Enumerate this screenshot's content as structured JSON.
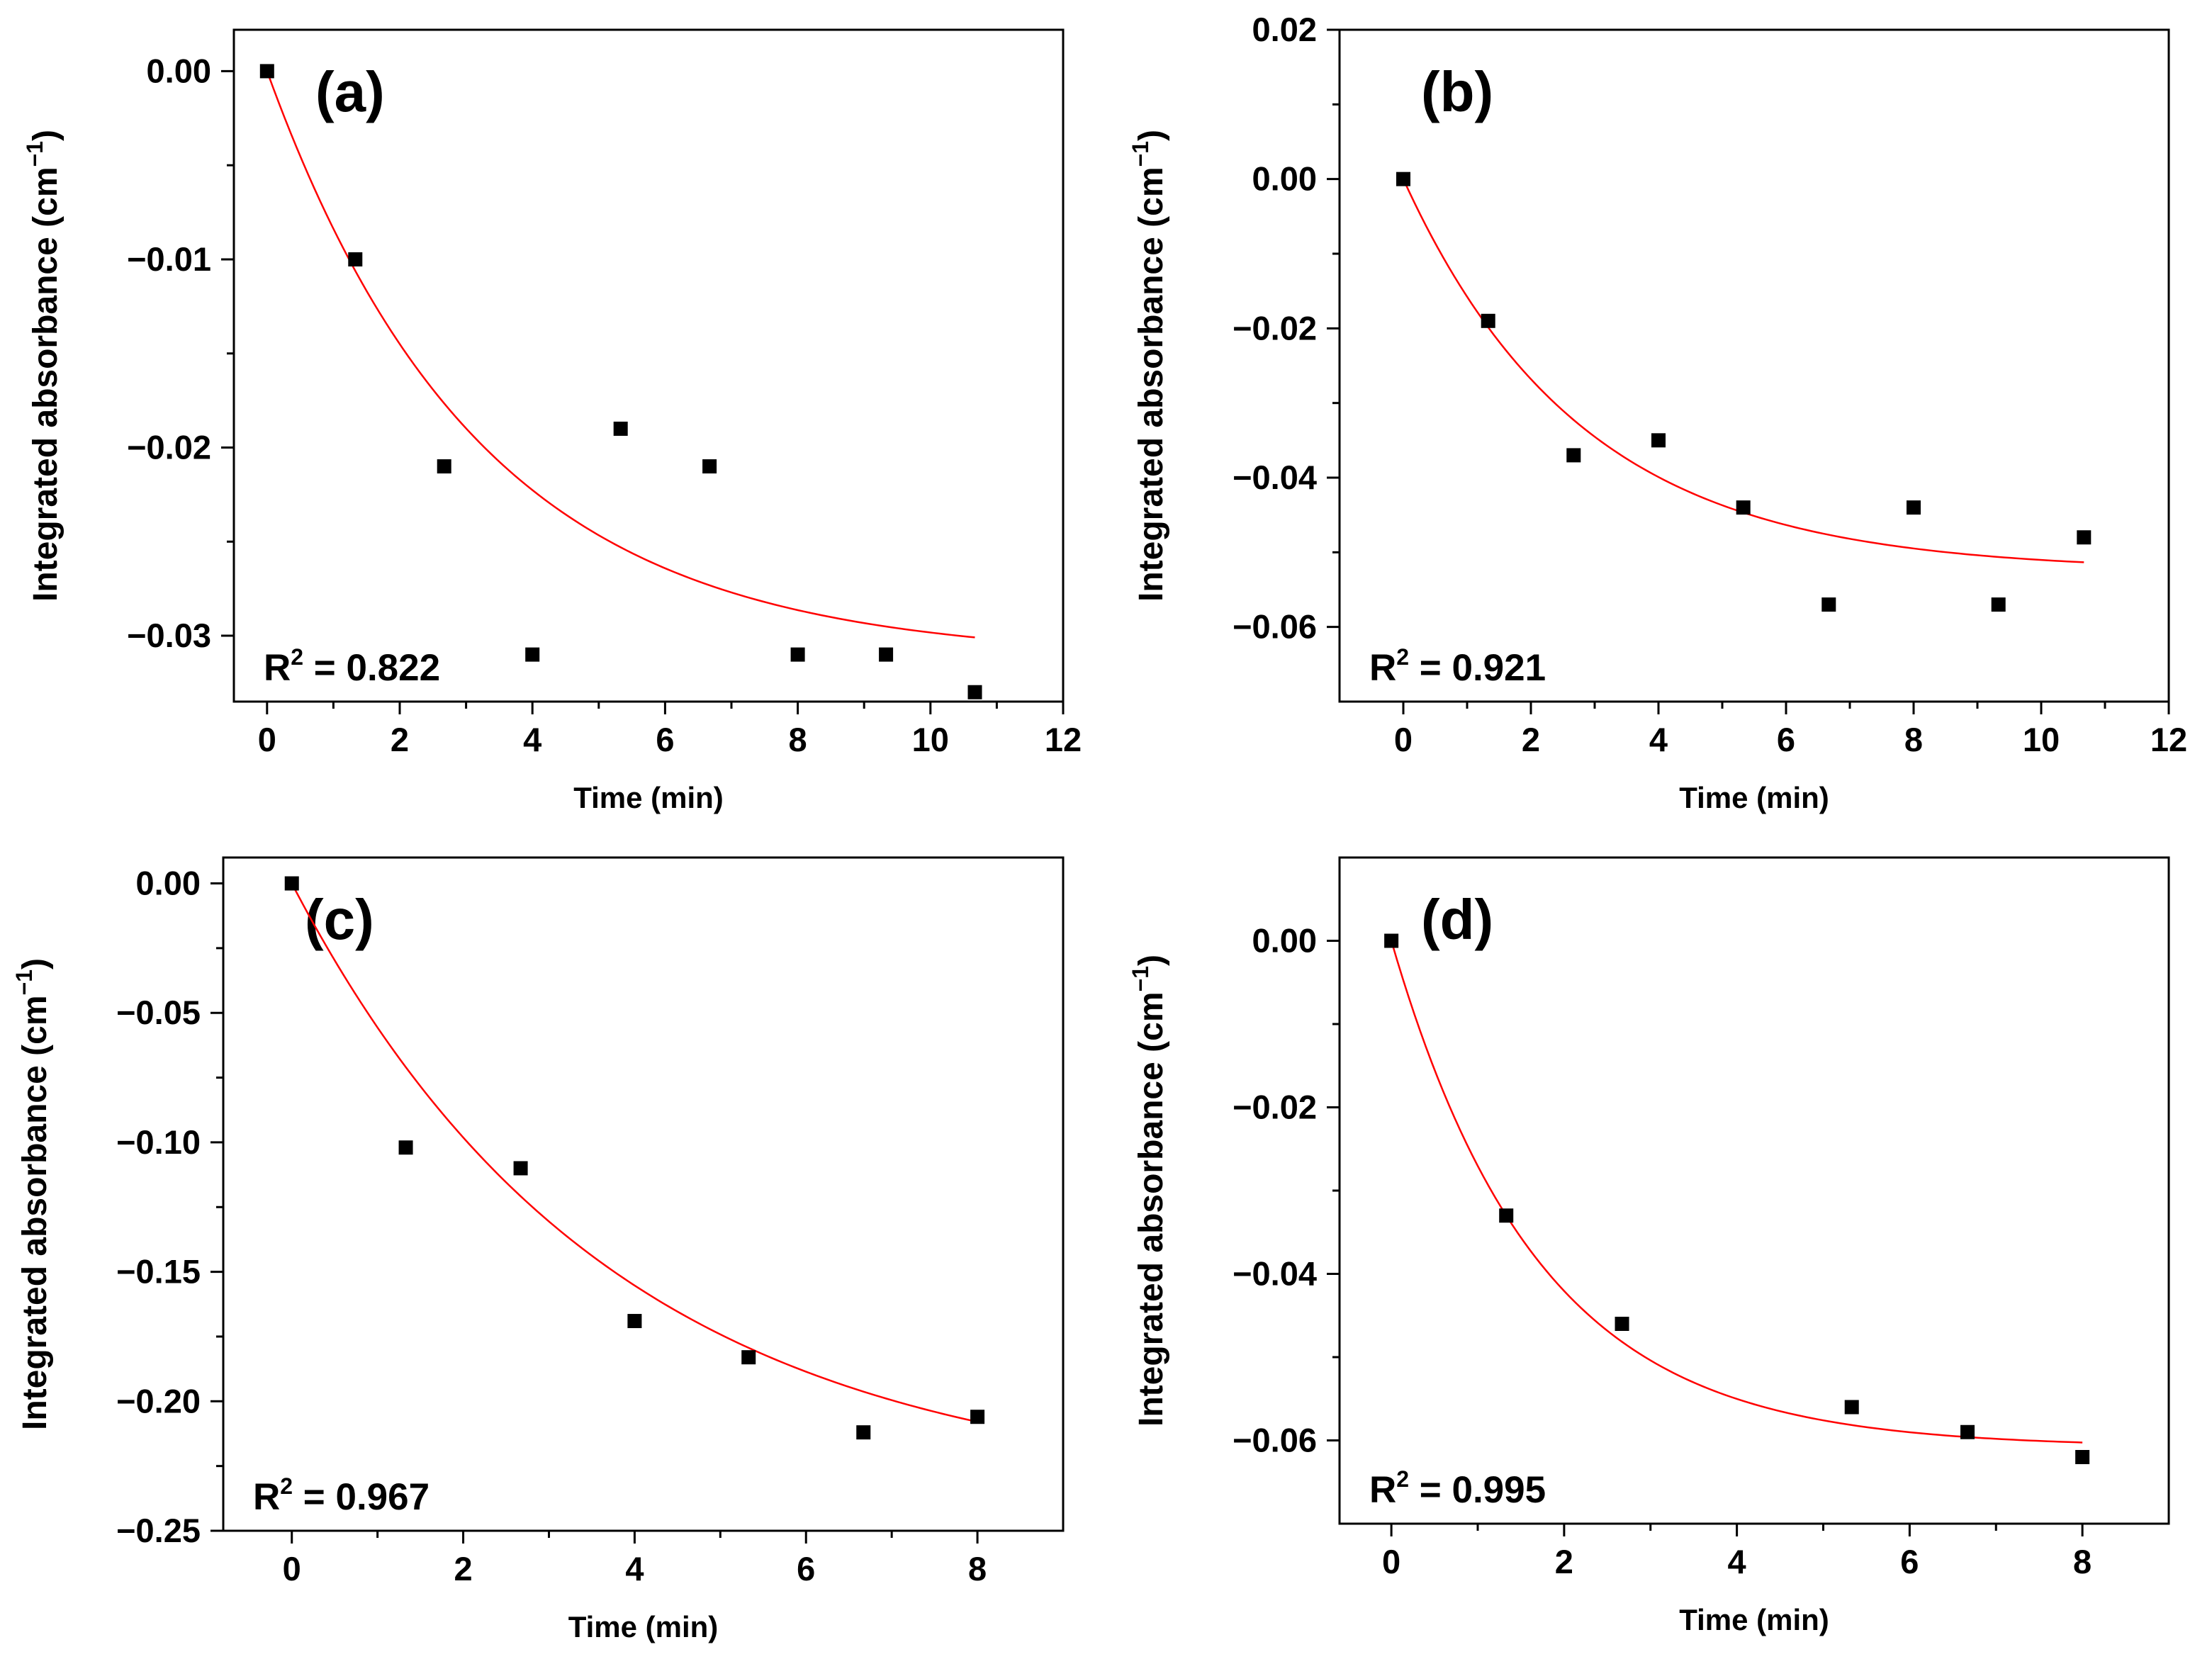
{
  "chart_data": [
    {
      "type": "scatter",
      "panel_label": "(a)",
      "xlabel": "Time (min)",
      "ylabel": "Integrated absorbance (cm",
      "ylabel_sup": "−1",
      "ylabel_close": ")",
      "xlim": [
        -0.5,
        12
      ],
      "ylim": [
        -0.0335,
        0.0022
      ],
      "xticks": [
        0,
        2,
        4,
        6,
        8,
        10,
        12
      ],
      "xtick_labels": [
        "0",
        "2",
        "4",
        "6",
        "8",
        "10",
        "12"
      ],
      "yticks": [
        0,
        -0.01,
        -0.02,
        -0.03
      ],
      "ytick_labels": [
        "0.00",
        "−0.01",
        "−0.02",
        "−0.03"
      ],
      "series": [
        {
          "name": "data",
          "marker": "square",
          "color": "#000000",
          "x": [
            0,
            1.33,
            2.67,
            4.0,
            5.33,
            6.67,
            8.0,
            9.33,
            10.67
          ],
          "y": [
            0,
            -0.01,
            -0.021,
            -0.031,
            -0.019,
            -0.021,
            -0.031,
            -0.031,
            -0.033
          ]
        },
        {
          "name": "fit",
          "color": "#ff0000",
          "curve": "exponential",
          "A": -0.0312,
          "tau": 3.2,
          "x_range": [
            0,
            10.67
          ]
        }
      ],
      "r2_prefix": "R",
      "r2_sup": "2",
      "r2_text": " = 0.822"
    },
    {
      "type": "scatter",
      "panel_label": "(b)",
      "xlabel": "Time (min)",
      "ylabel": "Integrated absorbance (cm",
      "ylabel_sup": "−1",
      "ylabel_close": ")",
      "xlim": [
        -1,
        12
      ],
      "ylim": [
        -0.07,
        0.02
      ],
      "xticks": [
        0,
        2,
        4,
        6,
        8,
        10,
        12
      ],
      "xtick_labels": [
        "0",
        "2",
        "4",
        "6",
        "8",
        "10",
        "12"
      ],
      "yticks": [
        0.02,
        0,
        -0.02,
        -0.04,
        -0.06
      ],
      "ytick_labels": [
        "0.02",
        "0.00",
        "−0.02",
        "−0.04",
        "−0.06"
      ],
      "series": [
        {
          "name": "data",
          "marker": "square",
          "color": "#000000",
          "x": [
            0,
            1.33,
            2.67,
            4.0,
            5.33,
            6.67,
            8.0,
            9.33,
            10.67
          ],
          "y": [
            0,
            -0.019,
            -0.037,
            -0.035,
            -0.044,
            -0.057,
            -0.044,
            -0.057,
            -0.048
          ]
        },
        {
          "name": "fit",
          "color": "#ff0000",
          "curve": "exponential",
          "A": -0.0525,
          "tau": 2.8,
          "x_range": [
            0,
            10.67
          ]
        }
      ],
      "r2_prefix": "R",
      "r2_sup": "2",
      "r2_text": " = 0.921"
    },
    {
      "type": "scatter",
      "panel_label": "(c)",
      "xlabel": "Time (min)",
      "ylabel": "Integrated absorbance (cm",
      "ylabel_sup": "−1",
      "ylabel_close": ")",
      "xlim": [
        -0.8,
        9
      ],
      "ylim": [
        -0.25,
        0.01
      ],
      "xticks": [
        0,
        2,
        4,
        6,
        8
      ],
      "xtick_labels": [
        "0",
        "2",
        "4",
        "6",
        "8"
      ],
      "yticks": [
        0,
        -0.05,
        -0.1,
        -0.15,
        -0.2,
        -0.25
      ],
      "ytick_labels": [
        "0.00",
        "−0.05",
        "−0.10",
        "−0.15",
        "−0.20",
        "−0.25"
      ],
      "series": [
        {
          "name": "data",
          "marker": "square",
          "color": "#000000",
          "x": [
            0,
            1.33,
            2.67,
            4.0,
            5.33,
            6.67,
            8.0
          ],
          "y": [
            0,
            -0.102,
            -0.11,
            -0.169,
            -0.183,
            -0.212,
            -0.206
          ]
        },
        {
          "name": "fit",
          "color": "#ff0000",
          "curve": "exponential",
          "A": -0.235,
          "tau": 3.7,
          "x_range": [
            0,
            8
          ]
        }
      ],
      "r2_prefix": "R",
      "r2_sup": "2",
      "r2_text": " = 0.967"
    },
    {
      "type": "scatter",
      "panel_label": "(d)",
      "xlabel": "Time (min)",
      "ylabel": "Integrated absorbance (cm",
      "ylabel_sup": "−1",
      "ylabel_close": ")",
      "xlim": [
        -0.6,
        9
      ],
      "ylim": [
        -0.07,
        0.01
      ],
      "xticks": [
        0,
        2,
        4,
        6,
        8
      ],
      "xtick_labels": [
        "0",
        "2",
        "4",
        "6",
        "8"
      ],
      "yticks": [
        0,
        -0.02,
        -0.04,
        -0.06
      ],
      "ytick_labels": [
        "0.00",
        "−0.02",
        "−0.04",
        "−0.06"
      ],
      "series": [
        {
          "name": "data",
          "marker": "square",
          "color": "#000000",
          "x": [
            0,
            1.33,
            2.67,
            5.33,
            6.67,
            8.0
          ],
          "y": [
            0,
            -0.033,
            -0.046,
            -0.056,
            -0.059,
            -0.062
          ]
        },
        {
          "name": "fit",
          "color": "#ff0000",
          "curve": "exponential",
          "A": -0.0608,
          "tau": 1.7,
          "x_range": [
            0,
            8
          ]
        }
      ],
      "r2_prefix": "R",
      "r2_sup": "2",
      "r2_text": " = 0.995"
    }
  ]
}
